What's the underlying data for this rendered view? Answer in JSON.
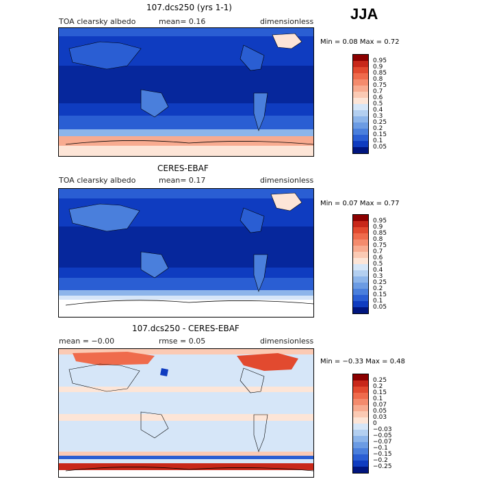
{
  "season": "JJA",
  "panels": [
    {
      "title": "107.dcs250 (yrs 1-1)",
      "left_text": "TOA clearsky albedo",
      "mid_text": "mean=   0.16",
      "right_text": "dimensionless",
      "minmax": "Min =   0.08  Max =   0.72",
      "colorbar_labels": [
        "0.95",
        "0.9",
        "0.85",
        "0.8",
        "0.75",
        "0.7",
        "0.6",
        "0.5",
        "0.4",
        "0.3",
        "0.25",
        "0.2",
        "0.15",
        "0.1",
        "0.05"
      ],
      "colorbar_colors": [
        "#8b0000",
        "#c8281a",
        "#e24a2f",
        "#ef6b4c",
        "#f48b6d",
        "#f8ab90",
        "#fbcab4",
        "#fde5d7",
        "#d6e6f8",
        "#b3cff0",
        "#8db5ea",
        "#6b9be3",
        "#4a7fdc",
        "#2a5ed3",
        "#0f3cc0",
        "#00157e"
      ]
    },
    {
      "title": "CERES-EBAF",
      "left_text": "TOA clearsky albedo",
      "mid_text": "mean=   0.17",
      "right_text": "dimensionless",
      "minmax": "Min =   0.07  Max =   0.77",
      "colorbar_labels": [
        "0.95",
        "0.9",
        "0.85",
        "0.8",
        "0.75",
        "0.7",
        "0.6",
        "0.5",
        "0.4",
        "0.3",
        "0.25",
        "0.2",
        "0.15",
        "0.1",
        "0.05"
      ],
      "colorbar_colors": [
        "#8b0000",
        "#c8281a",
        "#e24a2f",
        "#ef6b4c",
        "#f48b6d",
        "#f8ab90",
        "#fbcab4",
        "#fde5d7",
        "#d6e6f8",
        "#b3cff0",
        "#8db5ea",
        "#6b9be3",
        "#4a7fdc",
        "#2a5ed3",
        "#0f3cc0",
        "#00157e"
      ]
    },
    {
      "title": "107.dcs250 - CERES-EBAF",
      "left_text": "mean =  −0.00",
      "mid_text": "rmse =   0.05",
      "right_text": "dimensionless",
      "minmax": "Min =  −0.33  Max =    0.48",
      "colorbar_labels": [
        "0.25",
        "0.2",
        "0.15",
        "0.1",
        "0.07",
        "0.05",
        "0.03",
        "0",
        "−0.03",
        "−0.05",
        "−0.07",
        "−0.1",
        "−0.15",
        "−0.2",
        "−0.25"
      ],
      "colorbar_colors": [
        "#8b0000",
        "#c8281a",
        "#e24a2f",
        "#ef6b4c",
        "#f48b6d",
        "#f8ab90",
        "#fbcab4",
        "#fde5d7",
        "#d6e6f8",
        "#b3cff0",
        "#8db5ea",
        "#6b9be3",
        "#4a7fdc",
        "#2a5ed3",
        "#0f3cc0",
        "#00157e"
      ]
    }
  ]
}
